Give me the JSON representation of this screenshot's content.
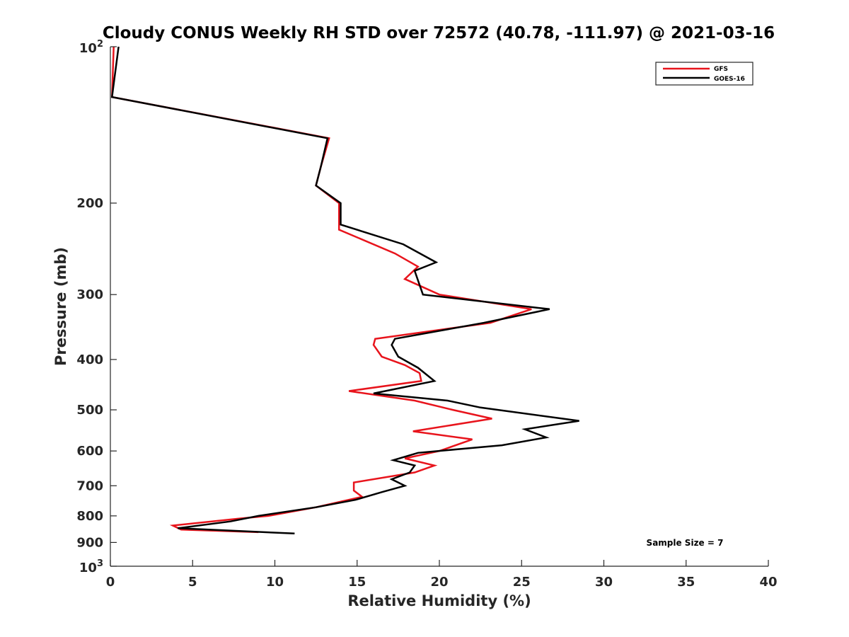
{
  "chart_data": {
    "type": "line",
    "title": "Cloudy CONUS Weekly RH STD over 72572 (40.78, -111.97) @ 2021-03-16",
    "xlabel": "Relative Humidity (%)",
    "ylabel": "Pressure (mb)",
    "xlim": [
      0,
      40
    ],
    "ylim": [
      100,
      1000
    ],
    "y_scale": "log",
    "y_reversed": true,
    "x_ticks": [
      "0",
      "5",
      "10",
      "15",
      "20",
      "25",
      "30",
      "35",
      "40"
    ],
    "y_ticks": [
      {
        "value": 100,
        "base": "10",
        "exp": "2"
      },
      {
        "value": 200,
        "label": "200"
      },
      {
        "value": 300,
        "label": "300"
      },
      {
        "value": 400,
        "label": "400"
      },
      {
        "value": 500,
        "label": "500"
      },
      {
        "value": 600,
        "label": "600"
      },
      {
        "value": 700,
        "label": "700"
      },
      {
        "value": 800,
        "label": "800"
      },
      {
        "value": 900,
        "label": "900"
      },
      {
        "value": 1000,
        "base": "10",
        "exp": "3"
      }
    ],
    "legend": {
      "position": "top-right",
      "entries": [
        "GFS",
        "GOES-16"
      ]
    },
    "annotation": "Sample Size = 7",
    "series": [
      {
        "name": "GFS",
        "color": "#e8141c",
        "points": [
          [
            0.2,
            100
          ],
          [
            0.1,
            125
          ],
          [
            13.3,
            150
          ],
          [
            12.8,
            170
          ],
          [
            12.5,
            185
          ],
          [
            13.9,
            200
          ],
          [
            13.9,
            225
          ],
          [
            17.3,
            250
          ],
          [
            18.7,
            265
          ],
          [
            17.9,
            280
          ],
          [
            20.0,
            300
          ],
          [
            25.6,
            320
          ],
          [
            23.1,
            340
          ],
          [
            16.1,
            365
          ],
          [
            16.0,
            375
          ],
          [
            16.5,
            395
          ],
          [
            17.9,
            410
          ],
          [
            18.8,
            425
          ],
          [
            18.9,
            440
          ],
          [
            14.5,
            460
          ],
          [
            18.5,
            480
          ],
          [
            20.8,
            500
          ],
          [
            23.2,
            520
          ],
          [
            18.4,
            550
          ],
          [
            22.0,
            570
          ],
          [
            20.0,
            600
          ],
          [
            17.9,
            620
          ],
          [
            19.7,
            640
          ],
          [
            18.5,
            660
          ],
          [
            14.8,
            690
          ],
          [
            14.8,
            715
          ],
          [
            15.3,
            735
          ],
          [
            13.3,
            760
          ],
          [
            12.5,
            770
          ],
          [
            9.6,
            800
          ],
          [
            7.8,
            810
          ],
          [
            3.8,
            835
          ],
          [
            4.3,
            850
          ],
          [
            9.0,
            860
          ]
        ]
      },
      {
        "name": "GOES-16",
        "color": "#000000",
        "points": [
          [
            0.5,
            100
          ],
          [
            0.1,
            125
          ],
          [
            13.2,
            150
          ],
          [
            12.8,
            170
          ],
          [
            12.5,
            185
          ],
          [
            14.0,
            200
          ],
          [
            14.0,
            220
          ],
          [
            17.8,
            240
          ],
          [
            19.8,
            260
          ],
          [
            18.5,
            270
          ],
          [
            19.0,
            300
          ],
          [
            26.7,
            320
          ],
          [
            22.7,
            340
          ],
          [
            17.3,
            365
          ],
          [
            17.1,
            375
          ],
          [
            17.5,
            395
          ],
          [
            18.7,
            415
          ],
          [
            19.7,
            440
          ],
          [
            16.0,
            465
          ],
          [
            20.5,
            480
          ],
          [
            22.5,
            495
          ],
          [
            28.5,
            525
          ],
          [
            25.2,
            545
          ],
          [
            26.5,
            565
          ],
          [
            23.8,
            585
          ],
          [
            18.7,
            605
          ],
          [
            17.2,
            625
          ],
          [
            18.5,
            640
          ],
          [
            18.2,
            660
          ],
          [
            17.1,
            680
          ],
          [
            17.9,
            700
          ],
          [
            16.5,
            720
          ],
          [
            14.9,
            745
          ],
          [
            12.5,
            770
          ],
          [
            9.0,
            800
          ],
          [
            7.3,
            820
          ],
          [
            4.1,
            845
          ],
          [
            11.2,
            865
          ]
        ]
      }
    ]
  }
}
